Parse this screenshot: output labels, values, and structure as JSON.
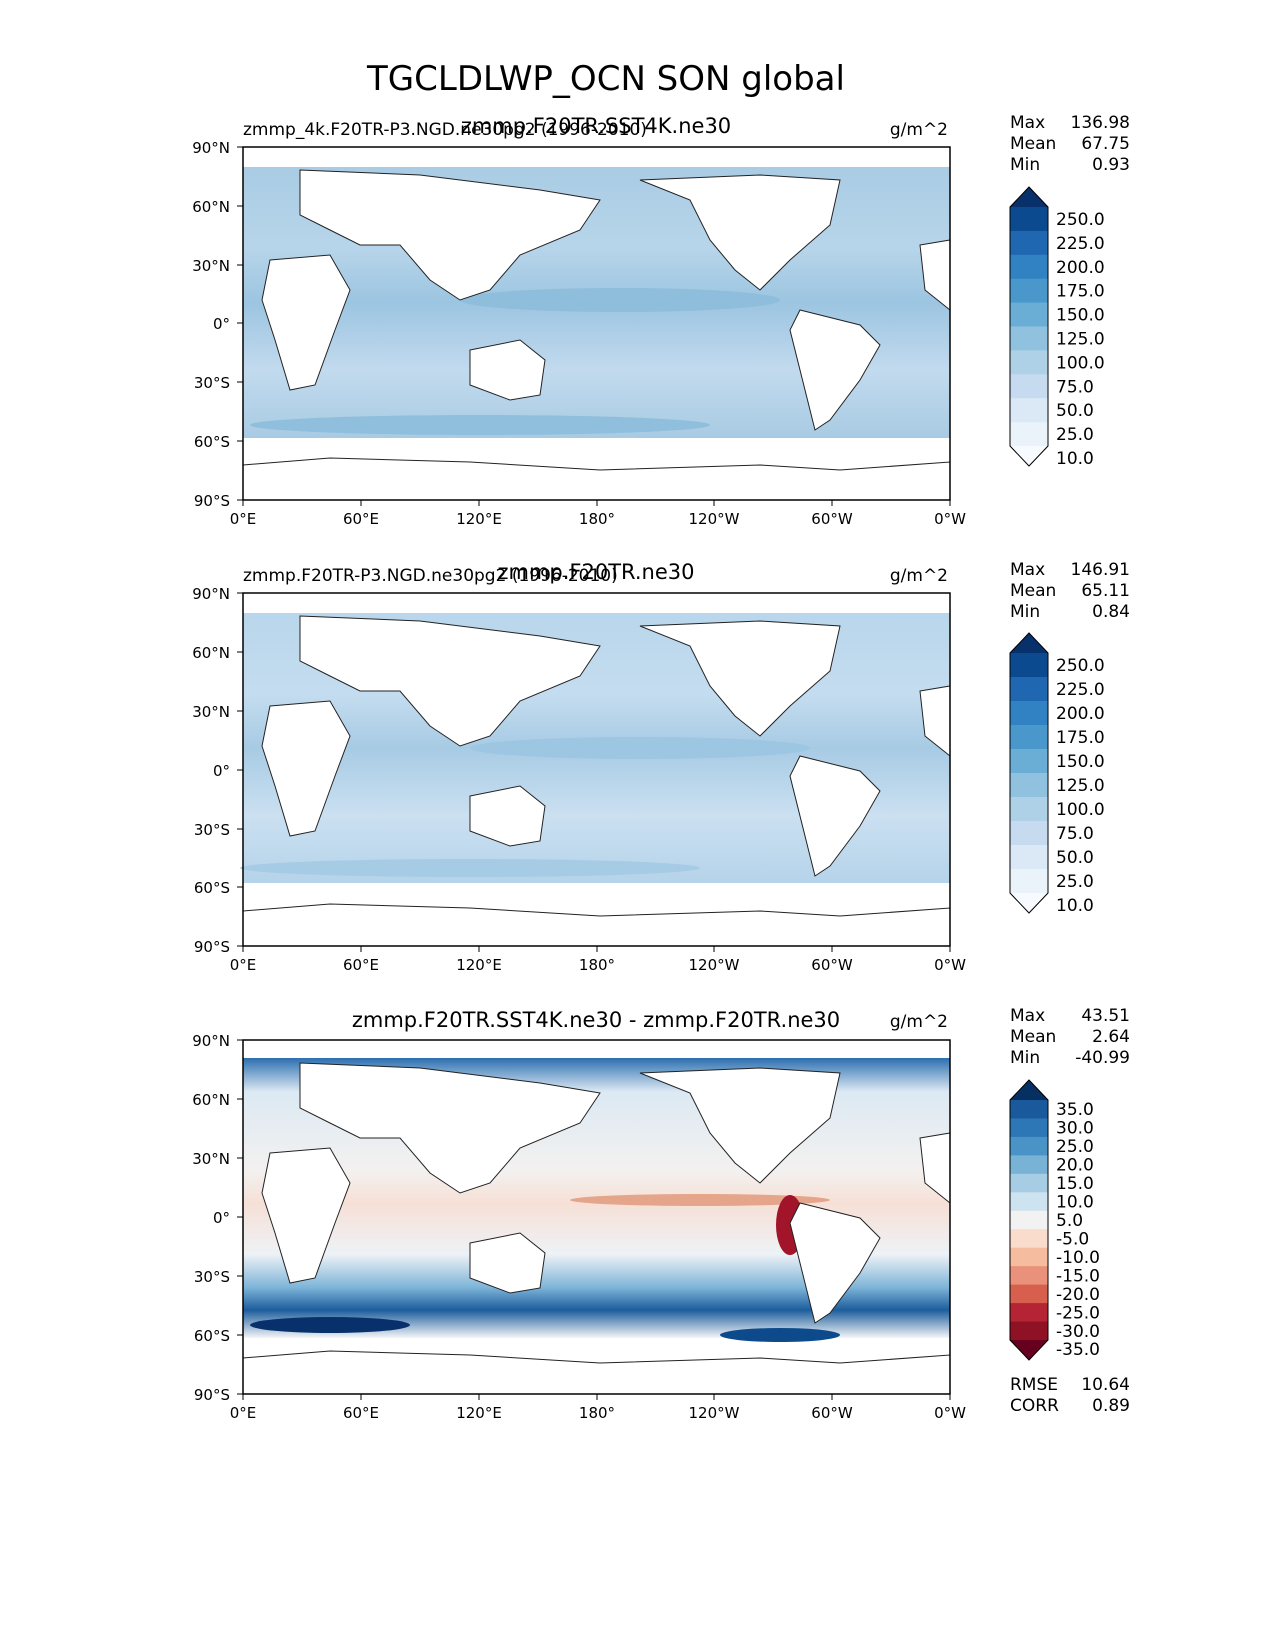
{
  "chart_data": {
    "type": "heatmap",
    "title": "TGCLDLWP_OCN SON global",
    "panels": [
      {
        "left_label": "zmmp_4k.F20TR-P3.NGD.ne30pg2 (1996-2010)",
        "center_label": "zmmp.F20TR.SST4K.ne30",
        "units": "g/m^2",
        "lat_ticks": [
          "90°N",
          "60°N",
          "30°N",
          "0°",
          "30°S",
          "60°S",
          "90°S"
        ],
        "lon_ticks": [
          "0°E",
          "60°E",
          "120°E",
          "180°",
          "120°W",
          "60°W",
          "0°W"
        ],
        "stats": [
          {
            "label": "Max",
            "value": "136.98"
          },
          {
            "label": "Mean",
            "value": "67.75"
          },
          {
            "label": "Min",
            "value": "0.93"
          }
        ],
        "colorbar": {
          "levels": [
            "250.0",
            "225.0",
            "200.0",
            "175.0",
            "150.0",
            "125.0",
            "100.0",
            "75.0",
            "50.0",
            "25.0",
            "10.0"
          ],
          "colors": [
            "#08306b",
            "#0b4a8f",
            "#1f67b0",
            "#3182c2",
            "#4a98cb",
            "#6aaed6",
            "#90c2df",
            "#afd1e7",
            "#c6dbef",
            "#dbe9f6",
            "#eaf2fa",
            "#f7fbff"
          ]
        }
      },
      {
        "left_label": "zmmp.F20TR-P3.NGD.ne30pg2 (1996-2010)",
        "center_label": "zmmp.F20TR.ne30",
        "units": "g/m^2",
        "lat_ticks": [
          "90°N",
          "60°N",
          "30°N",
          "0°",
          "30°S",
          "60°S",
          "90°S"
        ],
        "lon_ticks": [
          "0°E",
          "60°E",
          "120°E",
          "180°",
          "120°W",
          "60°W",
          "0°W"
        ],
        "stats": [
          {
            "label": "Max",
            "value": "146.91"
          },
          {
            "label": "Mean",
            "value": "65.11"
          },
          {
            "label": "Min",
            "value": "0.84"
          }
        ],
        "colorbar": {
          "levels": [
            "250.0",
            "225.0",
            "200.0",
            "175.0",
            "150.0",
            "125.0",
            "100.0",
            "75.0",
            "50.0",
            "25.0",
            "10.0"
          ],
          "colors": [
            "#08306b",
            "#0b4a8f",
            "#1f67b0",
            "#3182c2",
            "#4a98cb",
            "#6aaed6",
            "#90c2df",
            "#afd1e7",
            "#c6dbef",
            "#dbe9f6",
            "#eaf2fa",
            "#f7fbff"
          ]
        }
      },
      {
        "left_label": "",
        "center_label": "zmmp.F20TR.SST4K.ne30 - zmmp.F20TR.ne30",
        "units": "g/m^2",
        "lat_ticks": [
          "90°N",
          "60°N",
          "30°N",
          "0°",
          "30°S",
          "60°S",
          "90°S"
        ],
        "lon_ticks": [
          "0°E",
          "60°E",
          "120°E",
          "180°",
          "120°W",
          "60°W",
          "0°W"
        ],
        "stats": [
          {
            "label": "Max",
            "value": "43.51"
          },
          {
            "label": "Mean",
            "value": "2.64"
          },
          {
            "label": "Min",
            "value": "-40.99"
          }
        ],
        "colorbar": {
          "levels": [
            "35.0",
            "30.0",
            "25.0",
            "20.0",
            "15.0",
            "10.0",
            "5.0",
            "-5.0",
            "-10.0",
            "-15.0",
            "-20.0",
            "-25.0",
            "-30.0",
            "-35.0"
          ],
          "colors": [
            "#053061",
            "#1a5a9c",
            "#2e77b6",
            "#4a93c6",
            "#78b3d6",
            "#a6cde3",
            "#cde3ef",
            "#f2f2f2",
            "#f9dccb",
            "#f5bca0",
            "#e9917a",
            "#d6604d",
            "#b52434",
            "#8e1224",
            "#67001f"
          ]
        },
        "extra_stats": [
          {
            "label": "RMSE",
            "value": "10.64"
          },
          {
            "label": "CORR",
            "value": "0.89"
          }
        ]
      }
    ]
  }
}
